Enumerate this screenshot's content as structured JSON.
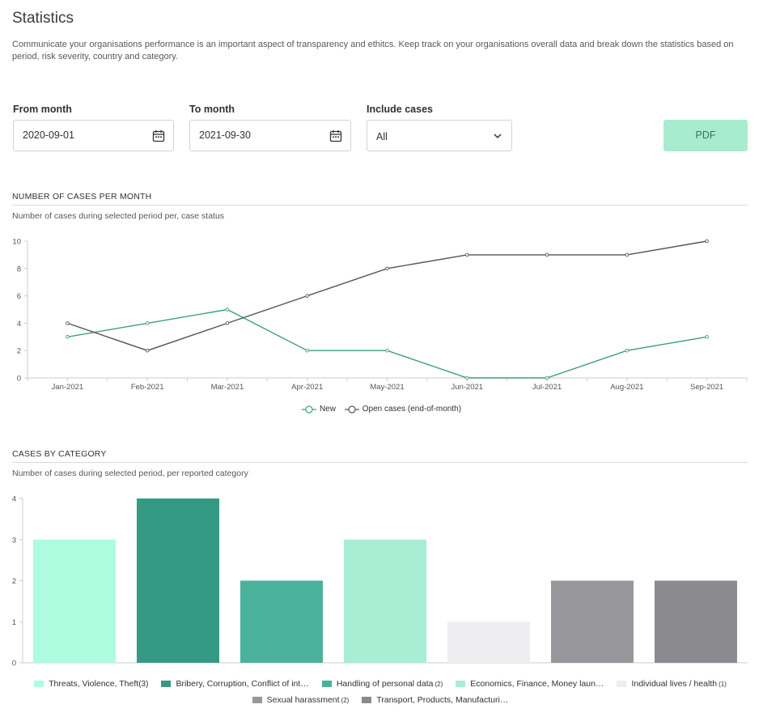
{
  "header": {
    "title": "Statistics",
    "description": "Communicate your organisations performance is an important aspect of transparency and ethitcs. Keep track on your organisations overall data and break down the statistics based on period, risk severity, country and category."
  },
  "filters": {
    "from_label": "From month",
    "from_value": "2020-09-01",
    "to_label": "To month",
    "to_value": "2021-09-30",
    "include_label": "Include cases",
    "include_value": "All",
    "pdf_label": "PDF"
  },
  "cases_per_month": {
    "title": "NUMBER OF CASES PER MONTH",
    "subtitle": "Number of cases during selected period per, case status"
  },
  "cases_by_category": {
    "title": "CASES BY CATEGORY",
    "subtitle": "Number of cases during selected period, per reported category"
  },
  "chart_data": [
    {
      "type": "line",
      "categories": [
        "Jan-2021",
        "Feb-2021",
        "Mar-2021",
        "Apr-2021",
        "May-2021",
        "Jun-2021",
        "Jul-2021",
        "Aug-2021",
        "Sep-2021"
      ],
      "series": [
        {
          "name": "New",
          "values": [
            3,
            4,
            5,
            2,
            2,
            0,
            0,
            2,
            3
          ],
          "color": "#3d9e85"
        },
        {
          "name": "Open cases (end-of-month)",
          "values": [
            4,
            2,
            4,
            6,
            8,
            9,
            9,
            9,
            10
          ],
          "color": "#555555"
        }
      ],
      "yticks": [
        "0",
        "2",
        "4",
        "6",
        "8",
        "10"
      ],
      "ylim": [
        0,
        10
      ],
      "legend": "bottom"
    },
    {
      "type": "bar",
      "categories": [
        "Threats, Violence, Theft",
        "Bribery, Corruption, Conflict of int…",
        "Handling of personal data",
        "Economics, Finance, Money laun…",
        "Individual lives / health",
        "Sexual harassment",
        "Transport, Products, Manufacturi…"
      ],
      "counts": [
        "(3)",
        "",
        "(2)",
        "",
        "(1)",
        "(2)",
        ""
      ],
      "values": [
        3,
        4,
        2,
        3,
        1,
        2,
        2
      ],
      "colors": [
        "#adfcdf",
        "#359a83",
        "#4ab29b",
        "#a8eed4",
        "#eeeef0",
        "#98979c",
        "#8b8a8f"
      ],
      "yticks": [
        "0",
        "1",
        "2",
        "3",
        "4"
      ],
      "ylim": [
        0,
        4
      ],
      "legend": "bottom"
    }
  ]
}
